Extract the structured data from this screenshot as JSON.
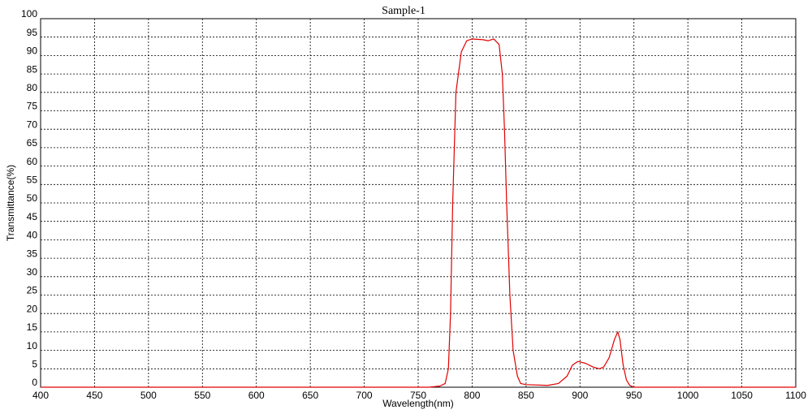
{
  "chart_data": {
    "type": "line",
    "title": "Sample-1",
    "xlabel": "Wavelength(nm)",
    "ylabel": "Transmittance(%)",
    "xlim": [
      400,
      1100
    ],
    "ylim": [
      0,
      100
    ],
    "xticks": [
      400,
      450,
      500,
      550,
      600,
      650,
      700,
      750,
      800,
      850,
      900,
      950,
      1000,
      1050,
      1100
    ],
    "yticks": [
      0,
      5,
      10,
      15,
      20,
      25,
      30,
      35,
      40,
      45,
      50,
      55,
      60,
      65,
      70,
      75,
      80,
      85,
      90,
      95,
      100
    ],
    "grid": true,
    "series": [
      {
        "color": "#e00000",
        "x": [
          400,
          760,
          770,
          775,
          778,
          780,
          782,
          785,
          790,
          795,
          800,
          810,
          815,
          820,
          825,
          828,
          830,
          832,
          835,
          838,
          842,
          845,
          850,
          870,
          880,
          888,
          893,
          898,
          905,
          912,
          918,
          922,
          927,
          932,
          935,
          937,
          940,
          943,
          946,
          950,
          1100
        ],
        "values": [
          0,
          0,
          0.3,
          1,
          5,
          20,
          50,
          80,
          91,
          94,
          94.5,
          94.3,
          94,
          94.5,
          93,
          85,
          70,
          50,
          25,
          10,
          3,
          1,
          0.7,
          0.5,
          1,
          3,
          6,
          7,
          6.5,
          5.5,
          5,
          5.5,
          8,
          13,
          15,
          13,
          6,
          2,
          0.5,
          0,
          0
        ]
      }
    ]
  }
}
